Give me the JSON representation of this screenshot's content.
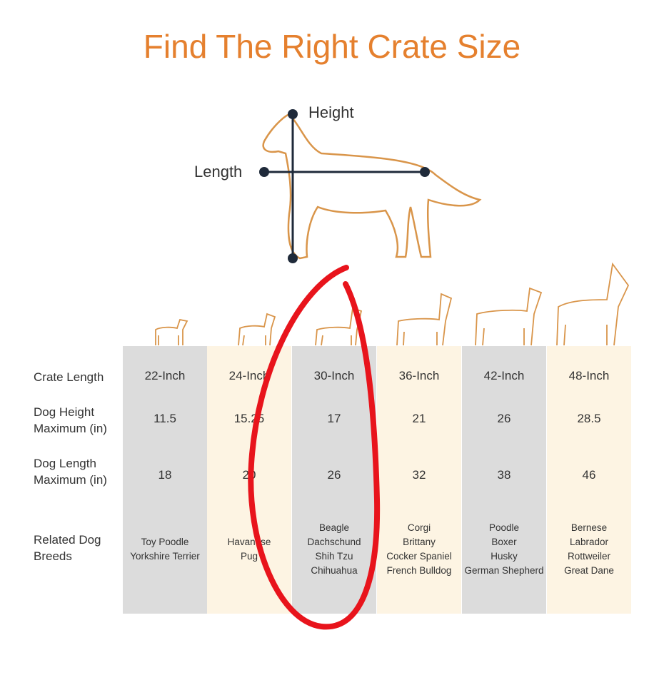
{
  "title": "Find The Right Crate Size",
  "diagram": {
    "height_label": "Height",
    "length_label": "Length"
  },
  "row_labels": [
    "Crate Length",
    "Dog Height\nMaximum (in)",
    "Dog Length\nMaximum (in)",
    "Related Dog\nBreeds"
  ],
  "columns": [
    {
      "crate": "22-Inch",
      "height": "11.5",
      "length": "18",
      "breeds": [
        "Toy Poodle",
        "Yorkshire Terrier"
      ]
    },
    {
      "crate": "24-Inch",
      "height": "15.25",
      "length": "20",
      "breeds": [
        "Havanese",
        "Pug"
      ]
    },
    {
      "crate": "30-Inch",
      "height": "17",
      "length": "26",
      "breeds": [
        "Beagle",
        "Dachschund",
        "Shih Tzu",
        "Chihuahua"
      ]
    },
    {
      "crate": "36-Inch",
      "height": "21",
      "length": "32",
      "breeds": [
        "Corgi",
        "Brittany",
        "Cocker Spaniel",
        "French Bulldog"
      ]
    },
    {
      "crate": "42-Inch",
      "height": "26",
      "length": "38",
      "breeds": [
        "Poodle",
        "Boxer",
        "Husky",
        "German Shepherd"
      ]
    },
    {
      "crate": "48-Inch",
      "height": "28.5",
      "length": "46",
      "breeds": [
        "Bernese",
        "Labrador",
        "Rottweiler",
        "Great Dane"
      ]
    }
  ],
  "colors": {
    "title": "#e5802e",
    "outline": "#d9954a",
    "gray_column": "#dcdcdc",
    "cream_column": "#fdf4e3",
    "annotation": "#e8141c"
  }
}
